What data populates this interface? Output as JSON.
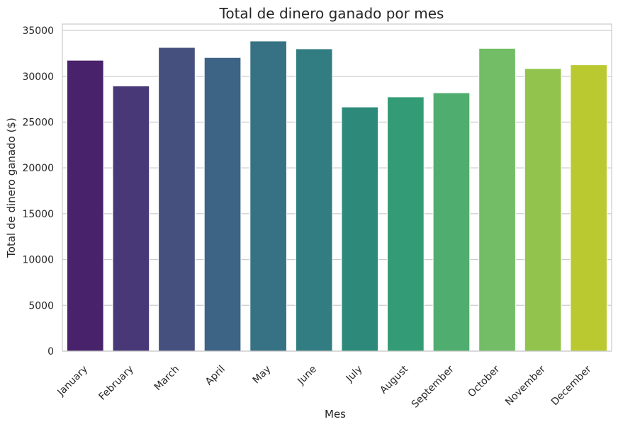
{
  "chart_data": {
    "type": "bar",
    "title": "Total de dinero ganado por mes",
    "xlabel": "Mes",
    "ylabel": "Total de dinero ganado ($)",
    "categories": [
      "January",
      "February",
      "March",
      "April",
      "May",
      "June",
      "July",
      "August",
      "September",
      "October",
      "November",
      "December"
    ],
    "values": [
      31750,
      28950,
      33150,
      32050,
      33850,
      33000,
      26650,
      27750,
      28200,
      33050,
      30850,
      31250
    ],
    "ylim": [
      0,
      35700
    ],
    "yticks": [
      0,
      5000,
      10000,
      15000,
      20000,
      25000,
      30000,
      35000
    ],
    "grid": "horizontal",
    "legend": "none",
    "colors": [
      "#48226b",
      "#483878",
      "#45507f",
      "#3d6385",
      "#377284",
      "#327d82",
      "#2d8a7a",
      "#339c76",
      "#4fad6f",
      "#72bd65",
      "#92c44d",
      "#bac92f"
    ],
    "style": {
      "grid_color": "#cccccc",
      "frame_color": "#cccccc",
      "text_color": "#262626"
    }
  }
}
